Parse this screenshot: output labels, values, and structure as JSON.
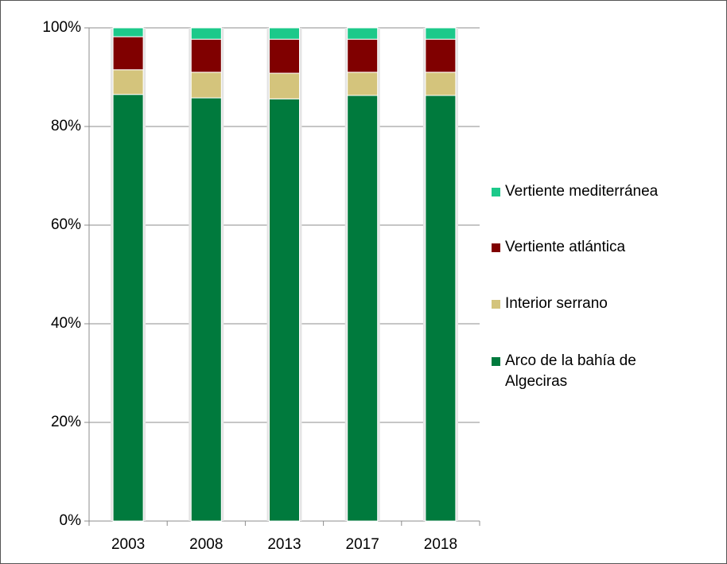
{
  "chart_data": {
    "type": "stacked_bar",
    "categories": [
      "2003",
      "2008",
      "2013",
      "2017",
      "2018"
    ],
    "series": [
      {
        "name": "Arco de la bahía de Algeciras",
        "color": "#007a3d",
        "values": [
          86.5,
          85.8,
          85.6,
          86.3,
          86.3
        ]
      },
      {
        "name": "Interior serrano",
        "color": "#d4c47c",
        "values": [
          5.0,
          5.2,
          5.2,
          4.7,
          4.7
        ]
      },
      {
        "name": "Vertiente atlántica",
        "color": "#800000",
        "values": [
          6.7,
          6.7,
          6.9,
          6.7,
          6.7
        ]
      },
      {
        "name": "Vertiente mediterránea",
        "color": "#1cc98a",
        "values": [
          1.8,
          2.3,
          2.3,
          2.3,
          2.3
        ]
      }
    ],
    "ylim": [
      0,
      100
    ],
    "yticks": [
      {
        "value": 0,
        "label": "0%"
      },
      {
        "value": 20,
        "label": "20%"
      },
      {
        "value": 40,
        "label": "40%"
      },
      {
        "value": 60,
        "label": "60%"
      },
      {
        "value": 80,
        "label": "80%"
      },
      {
        "value": 100,
        "label": "100%"
      }
    ],
    "grid": true,
    "legend": "right"
  }
}
